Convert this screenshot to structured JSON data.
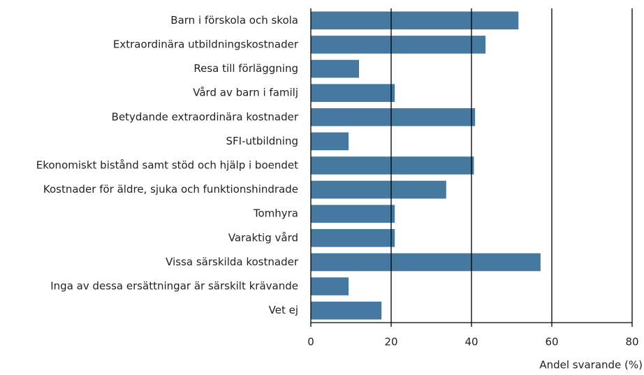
{
  "chart_data": {
    "type": "barh",
    "x_label": "Andel svarande (%)",
    "categories": [
      "Barn i förskola och skola",
      "Extraordinära utbildningskostnader",
      "Resa till förläggning",
      "Vård av barn i familj",
      "Betydande extraordinära kostnader",
      "SFI-utbildning",
      "Ekonomiskt bistånd samt stöd och hjälp i boendet",
      "Kostnader för äldre, sjuka och funktionshindrade",
      "Tomhyra",
      "Varaktig vård",
      "Vissa särskilda kostnader",
      "Inga av dessa ersättningar är särskilt krävande",
      "Vet ej"
    ],
    "values": [
      51.7,
      43.5,
      12.0,
      20.9,
      40.9,
      9.4,
      40.6,
      33.7,
      20.9,
      20.9,
      57.2,
      9.4,
      17.6
    ],
    "color": "#46799f",
    "xlim": [
      0,
      80
    ],
    "xticks": [
      0,
      20,
      40,
      60,
      80
    ],
    "grid": true
  }
}
